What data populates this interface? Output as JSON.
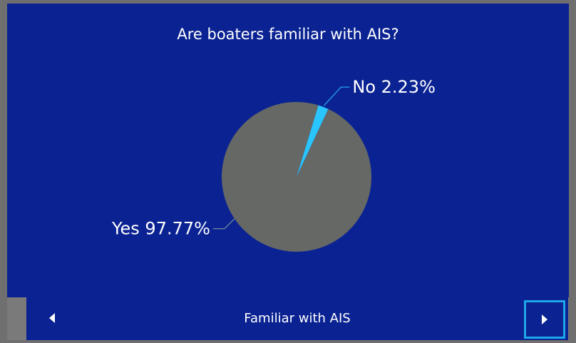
{
  "title": "Are boaters familiar with AIS?",
  "nav": {
    "label": "Familiar with AIS"
  },
  "chart_data": {
    "type": "pie",
    "slices": [
      {
        "label": "No",
        "value": 2.23,
        "display": "No 2.23%",
        "color": "#29c5ff"
      },
      {
        "label": "Yes",
        "value": 97.77,
        "display": "Yes 97.77%",
        "color": "#656865"
      }
    ],
    "title": "Are boaters familiar with AIS?"
  }
}
